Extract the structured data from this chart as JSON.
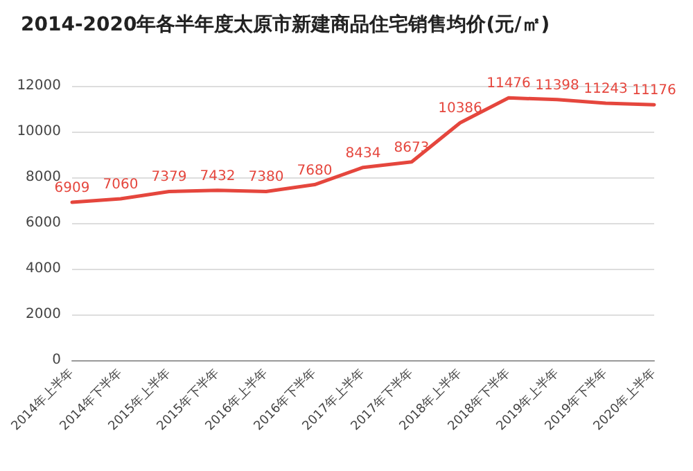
{
  "chart_data": {
    "type": "line",
    "title": "2014-2020年各半年度太原市新建商品住宅销售均价(元/㎡)",
    "categories": [
      "2014年上半年",
      "2014年下半年",
      "2015年上半年",
      "2015年下半年",
      "2016年上半年",
      "2016年下半年",
      "2017年上半年",
      "2017年下半年",
      "2018年上半年",
      "2018年下半年",
      "2019年上半年",
      "2019年下半年",
      "2020年上半年"
    ],
    "series": [
      {
        "color": "#e5463d",
        "values": [
          6909,
          7060,
          7379,
          7432,
          7380,
          7680,
          8434,
          8673,
          10386,
          11476,
          11398,
          11243,
          11176
        ]
      }
    ],
    "ylim": [
      0,
      12000
    ],
    "yticks": [
      0,
      2000,
      4000,
      6000,
      8000,
      10000,
      12000
    ],
    "grid": "y",
    "data_labels": true,
    "marker": "none",
    "line_style": "solid"
  }
}
